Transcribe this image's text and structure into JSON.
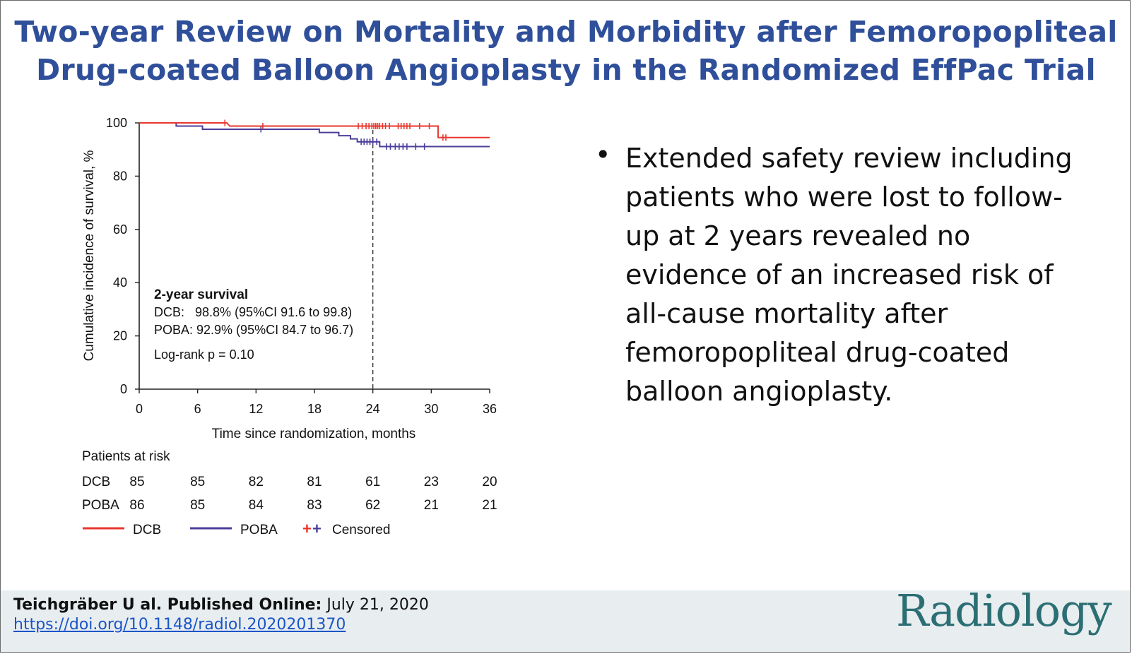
{
  "title": {
    "line1": "Two-year Review on Mortality and Morbidity after Femoropopliteal",
    "line2": "Drug-coated Balloon Angioplasty in the Randomized EffPac Trial"
  },
  "bullet": {
    "marker": "•",
    "text": "Extended safety review including patients who were lost to follow-up at 2 years revealed no evidence of an increased risk of all-cause mortality after femoropopliteal drug-coated balloon angioplasty."
  },
  "footer": {
    "authors_label": "Teichgräber U al. Published Online:",
    "date": "July 21, 2020",
    "doi": "https://doi.org/10.1148/radiol.2020201370",
    "logo": "Radiology"
  },
  "colors": {
    "title": "#2f4f9a",
    "dcb": "#e8372e",
    "poba": "#4b3f9b",
    "logo": "#2b6f74",
    "footer_bg": "#e8edf0"
  },
  "chart_data": {
    "type": "line",
    "xlabel": "Time since randomization, months",
    "ylabel": "Cumulative incidence of survival, %",
    "xlim": [
      0,
      36
    ],
    "ylim": [
      0,
      100
    ],
    "xticks": [
      0,
      6,
      12,
      18,
      24,
      30,
      36
    ],
    "yticks": [
      0,
      20,
      40,
      60,
      80,
      100
    ],
    "reference_line_x": 24,
    "series": [
      {
        "name": "DCB",
        "color": "#e8372e",
        "steps": [
          [
            0,
            100
          ],
          [
            9,
            100
          ],
          [
            9.3,
            98.8
          ],
          [
            30.7,
            98.8
          ],
          [
            30.7,
            94.5
          ],
          [
            36,
            94.5
          ]
        ],
        "censored": [
          8.8,
          12.7,
          22.5,
          22.9,
          23.3,
          23.6,
          23.9,
          24.1,
          24.3,
          24.5,
          24.7,
          25,
          25.3,
          25.7,
          26.6,
          26.9,
          27.2,
          27.5,
          27.8,
          28.8,
          29.8,
          31.2,
          31.5
        ]
      },
      {
        "name": "POBA",
        "color": "#4b3f9b",
        "steps": [
          [
            0,
            100
          ],
          [
            3.8,
            100
          ],
          [
            3.8,
            98.8
          ],
          [
            6.5,
            98.8
          ],
          [
            6.5,
            97.6
          ],
          [
            18.5,
            97.6
          ],
          [
            18.5,
            96.4
          ],
          [
            20.5,
            96.4
          ],
          [
            20.5,
            95.2
          ],
          [
            21.7,
            95.2
          ],
          [
            21.7,
            94
          ],
          [
            22.4,
            94
          ],
          [
            22.4,
            92.9
          ],
          [
            24.7,
            92.9
          ],
          [
            24.7,
            91.1
          ],
          [
            36,
            91.1
          ]
        ],
        "censored": [
          12.5,
          22.8,
          23.1,
          23.4,
          23.7,
          24,
          24.4,
          25.4,
          25.8,
          26.3,
          26.7,
          27.1,
          27.5,
          28.4,
          29.3
        ]
      }
    ],
    "annotation": {
      "heading": "2-year survival",
      "dcb": "DCB:   98.8% (95%CI 91.6 to 99.8)",
      "poba": "POBA: 92.9% (95%CI 84.7 to 96.7)",
      "logrank": "Log-rank p = 0.10"
    },
    "at_risk": {
      "label": "Patients at risk",
      "times": [
        0,
        6,
        12,
        18,
        24,
        30,
        36
      ],
      "rows": [
        {
          "group": "DCB",
          "values": [
            85,
            85,
            82,
            81,
            61,
            23,
            20
          ]
        },
        {
          "group": "POBA",
          "values": [
            86,
            85,
            84,
            83,
            62,
            21,
            21
          ]
        }
      ]
    },
    "legend": {
      "dcb": "DCB",
      "poba": "POBA",
      "censored_mark_dcb": "+",
      "censored_mark_poba": "+",
      "censored": "Censored"
    }
  }
}
